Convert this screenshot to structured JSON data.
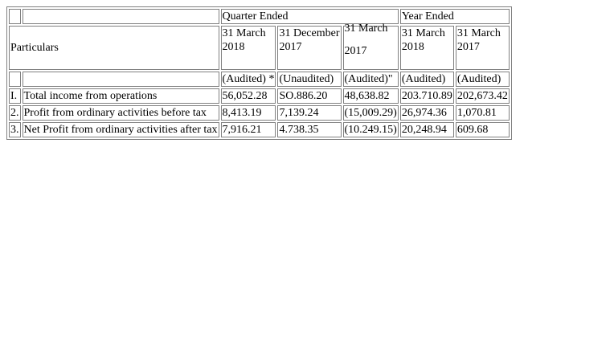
{
  "table": {
    "header": {
      "quarter_ended": "Quarter Ended",
      "year_ended": "Year Ended",
      "particulars": "Particulars",
      "dates": [
        {
          "line1": "31 March",
          "line2": "2018"
        },
        {
          "line1": "31 December",
          "line2": "2017"
        },
        {
          "line1": "31 March",
          "line2": "2017"
        },
        {
          "line1": "31 March",
          "line2": "2018"
        },
        {
          "line1": "31 March",
          "line2": "2017"
        }
      ],
      "audit_status": [
        "(Audited) *",
        "(Unaudited)",
        "(Audited)\"",
        "(Audited)",
        "(Audited)"
      ]
    },
    "rows": [
      {
        "num": "I.",
        "label": "Total income from operations",
        "values": [
          "56,052.28",
          "SO.886.20",
          "48,638.82",
          "203.710.89",
          "202,673.42"
        ]
      },
      {
        "num": "2.",
        "label": "Profit from ordinary activities before tax",
        "values": [
          "8,413.19",
          "7,139.24",
          "(15,009.29)",
          "26,974.36",
          "1,070.81"
        ]
      },
      {
        "num": "3.",
        "label": "Net Profit from ordinary activities after tax",
        "values": [
          "7,916.21",
          "4.738.35",
          "(10.249.15)",
          "20,248.94",
          "609.68"
        ]
      }
    ]
  }
}
